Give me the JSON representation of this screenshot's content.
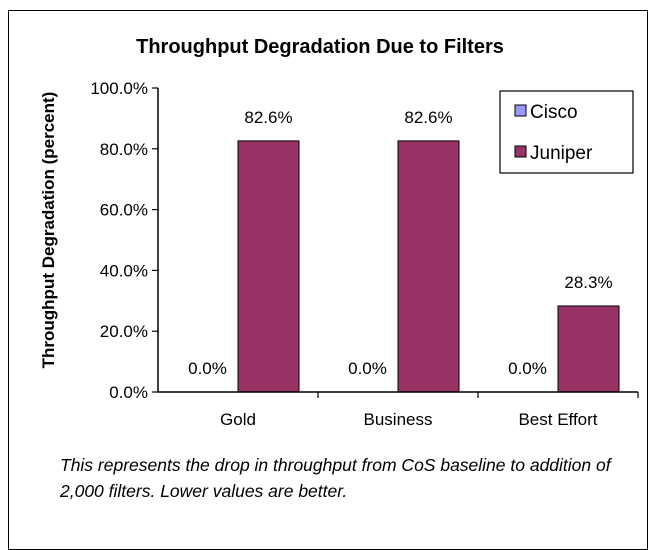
{
  "chart_data": {
    "type": "bar",
    "title": "Throughput Degradation Due to Filters",
    "ylabel": "Throughput Degradation (percent)",
    "xlabel": "",
    "categories": [
      "Gold",
      "Business",
      "Best Effort"
    ],
    "series": [
      {
        "name": "Cisco",
        "values": [
          0.0,
          0.0,
          0.0
        ],
        "labels": [
          "0.0%",
          "0.0%",
          "0.0%"
        ],
        "color": "#9999ff"
      },
      {
        "name": "Juniper",
        "values": [
          82.6,
          82.6,
          28.3
        ],
        "labels": [
          "82.6%",
          "82.6%",
          "28.3%"
        ],
        "color": "#993366"
      }
    ],
    "yticks": [
      "0.0%",
      "20.0%",
      "40.0%",
      "60.0%",
      "80.0%",
      "100.0%"
    ],
    "ylim": [
      0,
      100
    ],
    "grid": false,
    "legend_position": "top-right"
  },
  "caption": "This represents the drop in throughput from CoS baseline to addition of 2,000 filters. Lower values are better."
}
